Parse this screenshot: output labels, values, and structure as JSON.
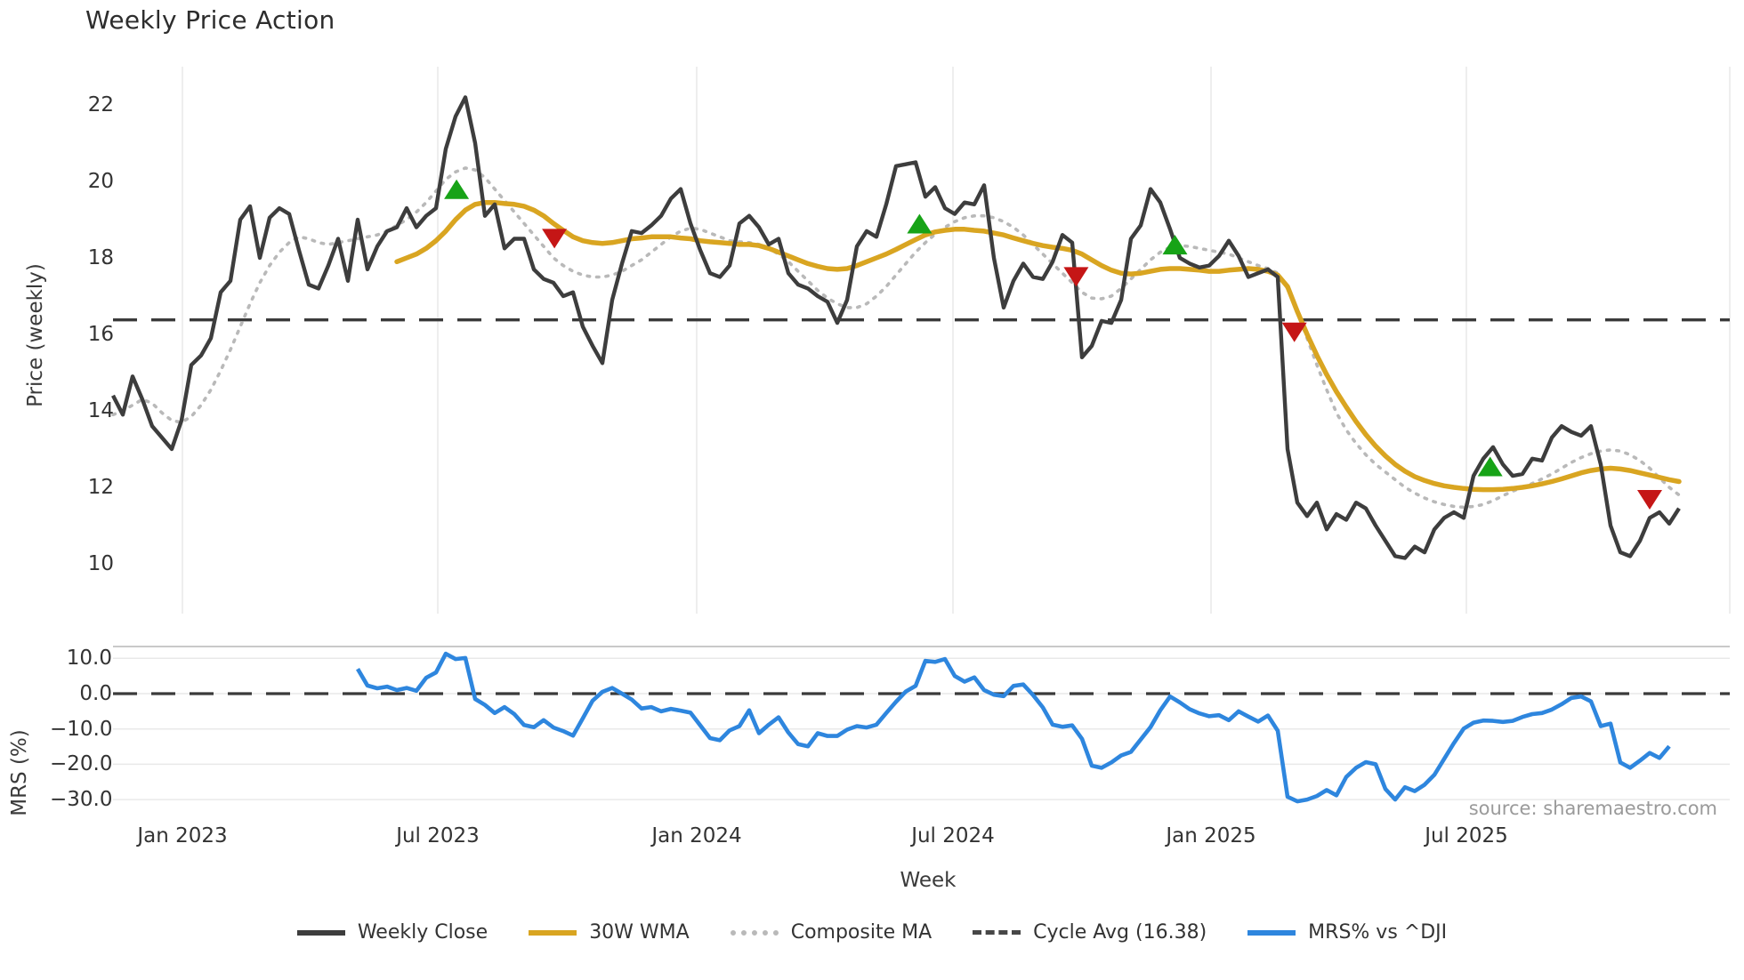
{
  "title": "Weekly Price Action",
  "source_text": "source: sharemaestro.com",
  "axes": {
    "price": {
      "label": "Price (weekly)",
      "ticks": [
        "22",
        "20",
        "18",
        "16",
        "14",
        "12",
        "10"
      ]
    },
    "mrs": {
      "label": "MRS (%)",
      "ticks": [
        "10.0",
        "0.0",
        "−10.0",
        "−20.0",
        "−30.0"
      ]
    },
    "x": {
      "label": "Week",
      "ticks": [
        "Jan 2023",
        "Jul 2023",
        "Jan 2024",
        "Jul 2024",
        "Jan 2025",
        "Jul 2025"
      ]
    }
  },
  "legend": {
    "items": [
      {
        "label": "Weekly Close",
        "style": "solid",
        "color": "#3d3d3d"
      },
      {
        "label": "30W WMA",
        "style": "solid",
        "color": "#d9a521"
      },
      {
        "label": "Composite MA",
        "style": "dotted",
        "color": "#b9b9b9"
      },
      {
        "label": "Cycle Avg (16.38)",
        "style": "dashed",
        "color": "#474747"
      },
      {
        "label": "MRS% vs ^DJI",
        "style": "solid",
        "color": "#2e86de"
      }
    ]
  },
  "chart_data": [
    {
      "type": "line",
      "panel": "price",
      "title": "Weekly Price Action",
      "ylabel": "Price (weekly)",
      "xlabel": "Week",
      "ylim": [
        9.2,
        23.0
      ],
      "grid": "vertical-only",
      "x_gridline_labels": [
        "Jan 2023",
        "Jul 2023",
        "Jan 2024",
        "Jul 2024",
        "Jan 2025",
        "Jul 2025"
      ],
      "x_unit": "week-index (0 = mid-Nov 2022, 1 index = 1 week)",
      "cycle_avg_reference": 16.38,
      "series": [
        {
          "name": "Weekly Close",
          "color": "#3d3d3d",
          "style": "solid",
          "start_index": 0,
          "values": [
            14.4,
            13.9,
            14.9,
            14.3,
            13.6,
            13.3,
            13.0,
            13.75,
            15.2,
            15.45,
            15.9,
            17.1,
            17.4,
            19.0,
            19.35,
            18.0,
            19.05,
            19.3,
            19.15,
            18.2,
            17.3,
            17.2,
            17.8,
            18.5,
            17.4,
            19.0,
            17.7,
            18.3,
            18.7,
            18.8,
            19.3,
            18.8,
            19.1,
            19.3,
            20.85,
            21.7,
            22.2,
            21.0,
            19.1,
            19.4,
            18.25,
            18.5,
            18.5,
            17.7,
            17.45,
            17.35,
            17.0,
            17.1,
            16.2,
            15.7,
            15.25,
            16.9,
            17.85,
            18.7,
            18.65,
            18.85,
            19.1,
            19.55,
            19.8,
            18.9,
            18.2,
            17.6,
            17.5,
            17.8,
            18.9,
            19.1,
            18.8,
            18.35,
            18.5,
            17.6,
            17.3,
            17.2,
            17.0,
            16.85,
            16.3,
            16.9,
            18.3,
            18.7,
            18.55,
            19.4,
            20.4,
            20.45,
            20.5,
            19.6,
            19.85,
            19.3,
            19.15,
            19.45,
            19.4,
            19.9,
            18.0,
            16.7,
            17.4,
            17.85,
            17.5,
            17.45,
            17.9,
            18.6,
            18.4,
            15.4,
            15.7,
            16.35,
            16.3,
            16.9,
            18.5,
            18.85,
            19.8,
            19.45,
            18.75,
            18.0,
            17.85,
            17.75,
            17.8,
            18.05,
            18.45,
            18.05,
            17.5,
            17.6,
            17.7,
            17.5,
            13.0,
            11.6,
            11.25,
            11.6,
            10.9,
            11.3,
            11.15,
            11.6,
            11.45,
            11.0,
            10.6,
            10.2,
            10.15,
            10.45,
            10.3,
            10.9,
            11.2,
            11.35,
            11.2,
            12.3,
            12.75,
            13.05,
            12.6,
            12.3,
            12.35,
            12.75,
            12.7,
            13.3,
            13.6,
            13.45,
            13.35,
            13.6,
            12.6,
            11.0,
            10.3,
            10.2,
            10.6,
            11.2,
            11.35,
            11.05,
            11.45
          ]
        },
        {
          "name": "30W WMA",
          "color": "#d9a521",
          "style": "solid",
          "start_index": 29,
          "values": [
            17.9,
            18.0,
            18.1,
            18.25,
            18.45,
            18.7,
            19.0,
            19.25,
            19.4,
            19.45,
            19.45,
            19.42,
            19.4,
            19.35,
            19.25,
            19.1,
            18.9,
            18.72,
            18.55,
            18.45,
            18.4,
            18.38,
            18.4,
            18.45,
            18.5,
            18.52,
            18.55,
            18.55,
            18.55,
            18.52,
            18.5,
            18.45,
            18.42,
            18.4,
            18.38,
            18.35,
            18.35,
            18.32,
            18.25,
            18.15,
            18.05,
            17.95,
            17.85,
            17.78,
            17.72,
            17.7,
            17.72,
            17.8,
            17.9,
            18.0,
            18.1,
            18.22,
            18.35,
            18.48,
            18.6,
            18.68,
            18.72,
            18.75,
            18.75,
            18.72,
            18.7,
            18.65,
            18.6,
            18.52,
            18.45,
            18.38,
            18.32,
            18.28,
            18.25,
            18.2,
            18.1,
            17.95,
            17.8,
            17.68,
            17.6,
            17.58,
            17.6,
            17.65,
            17.7,
            17.72,
            17.72,
            17.7,
            17.68,
            17.65,
            17.65,
            17.68,
            17.7,
            17.72,
            17.7,
            17.65,
            17.55,
            17.25,
            16.6,
            16.0,
            15.45,
            14.95,
            14.5,
            14.1,
            13.72,
            13.38,
            13.08,
            12.82,
            12.6,
            12.42,
            12.28,
            12.18,
            12.1,
            12.04,
            12.0,
            11.97,
            11.95,
            11.94,
            11.94,
            11.95,
            11.97,
            12.0,
            12.04,
            12.09,
            12.15,
            12.22,
            12.3,
            12.38,
            12.44,
            12.48,
            12.5,
            12.48,
            12.44,
            12.38,
            12.32,
            12.26,
            12.2,
            12.15
          ]
        },
        {
          "name": "Composite MA",
          "color": "#b9b9b9",
          "style": "dotted",
          "start_index": 0,
          "values": [
            13.9,
            14.0,
            14.15,
            14.3,
            14.2,
            13.95,
            13.75,
            13.7,
            13.85,
            14.15,
            14.55,
            15.05,
            15.6,
            16.2,
            16.8,
            17.35,
            17.8,
            18.15,
            18.4,
            18.55,
            18.5,
            18.4,
            18.35,
            18.4,
            18.45,
            18.5,
            18.55,
            18.6,
            18.7,
            18.85,
            19.0,
            19.2,
            19.45,
            19.75,
            20.05,
            20.25,
            20.35,
            20.3,
            20.1,
            19.8,
            19.5,
            19.2,
            18.9,
            18.6,
            18.3,
            18.0,
            17.8,
            17.65,
            17.55,
            17.5,
            17.5,
            17.55,
            17.65,
            17.8,
            17.95,
            18.15,
            18.35,
            18.55,
            18.7,
            18.78,
            18.75,
            18.65,
            18.55,
            18.45,
            18.42,
            18.4,
            18.35,
            18.25,
            18.1,
            17.9,
            17.65,
            17.4,
            17.15,
            16.95,
            16.8,
            16.7,
            16.7,
            16.8,
            17.0,
            17.25,
            17.55,
            17.85,
            18.15,
            18.4,
            18.62,
            18.8,
            18.95,
            19.05,
            19.1,
            19.1,
            19.05,
            18.95,
            18.8,
            18.6,
            18.35,
            18.1,
            17.85,
            17.6,
            17.35,
            17.1,
            16.95,
            16.93,
            17.0,
            17.2,
            17.45,
            17.7,
            17.95,
            18.15,
            18.28,
            18.32,
            18.3,
            18.25,
            18.2,
            18.15,
            18.1,
            18.0,
            17.9,
            17.8,
            17.72,
            17.6,
            17.2,
            16.6,
            15.9,
            15.2,
            14.55,
            13.95,
            13.5,
            13.15,
            12.85,
            12.6,
            12.4,
            12.2,
            12.0,
            11.85,
            11.72,
            11.62,
            11.55,
            11.5,
            11.48,
            11.5,
            11.55,
            11.65,
            11.78,
            11.9,
            12.0,
            12.1,
            12.22,
            12.35,
            12.5,
            12.65,
            12.78,
            12.88,
            12.95,
            12.98,
            12.95,
            12.85,
            12.7,
            12.5,
            12.25,
            12.0,
            11.8
          ]
        }
      ],
      "markers": {
        "buy_signals": {
          "shape": "triangle-up",
          "color": "#17a317",
          "points": [
            {
              "week": 35.1,
              "price": 19.75
            },
            {
              "week": 82.4,
              "price": 18.85
            },
            {
              "week": 108.5,
              "price": 18.3
            },
            {
              "week": 140.7,
              "price": 12.5
            }
          ]
        },
        "sell_signals": {
          "shape": "triangle-down",
          "color": "#c51616",
          "points": [
            {
              "week": 45.1,
              "price": 18.55
            },
            {
              "week": 98.4,
              "price": 17.55
            },
            {
              "week": 120.7,
              "price": 16.1
            },
            {
              "week": 157.0,
              "price": 11.72
            }
          ]
        }
      }
    },
    {
      "type": "line",
      "panel": "mrs",
      "ylabel": "MRS (%)",
      "ylim": [
        -36,
        14
      ],
      "grid": "horizontal-only",
      "zero_reference_dashed": true,
      "series": [
        {
          "name": "MRS% vs ^DJI",
          "color": "#2e86de",
          "style": "solid",
          "start_index": 25,
          "values": [
            7.0,
            2.3,
            1.5,
            2.0,
            1.0,
            1.6,
            0.8,
            4.5,
            6.0,
            11.3,
            9.8,
            10.1,
            -1.5,
            -3.2,
            -5.5,
            -3.8,
            -5.8,
            -8.9,
            -9.5,
            -7.5,
            -9.6,
            -10.6,
            -11.9,
            -7.0,
            -2.0,
            0.5,
            1.6,
            0.0,
            -1.7,
            -4.2,
            -3.8,
            -5.0,
            -4.3,
            -4.8,
            -5.4,
            -9.0,
            -12.6,
            -13.2,
            -10.4,
            -9.2,
            -4.7,
            -11.2,
            -8.8,
            -6.7,
            -11.0,
            -14.3,
            -14.9,
            -11.2,
            -12.0,
            -12.0,
            -10.2,
            -9.2,
            -9.6,
            -8.8,
            -5.5,
            -2.3,
            0.6,
            2.2,
            9.3,
            9.0,
            9.8,
            5.0,
            3.4,
            4.6,
            1.0,
            -0.3,
            -0.7,
            2.2,
            2.6,
            -0.4,
            -3.9,
            -8.8,
            -9.4,
            -9.0,
            -12.8,
            -20.4,
            -21.0,
            -19.5,
            -17.5,
            -16.5,
            -13.0,
            -9.5,
            -4.7,
            -0.8,
            -2.5,
            -4.4,
            -5.6,
            -6.4,
            -6.1,
            -7.5,
            -5.0,
            -6.5,
            -7.9,
            -6.2,
            -10.5,
            -29.2,
            -30.5,
            -30.0,
            -29.0,
            -27.3,
            -28.8,
            -23.6,
            -21.0,
            -19.4,
            -20.0,
            -27.0,
            -30.0,
            -26.5,
            -27.6,
            -25.8,
            -23.0,
            -18.5,
            -14.0,
            -9.9,
            -8.2,
            -7.6,
            -7.7,
            -8.0,
            -7.7,
            -6.6,
            -5.8,
            -5.5,
            -4.5,
            -3.0,
            -1.2,
            -0.8,
            -2.2,
            -9.2,
            -8.5,
            -19.5,
            -21.0,
            -19.0,
            -16.8,
            -18.2,
            -14.9
          ]
        }
      ]
    }
  ]
}
